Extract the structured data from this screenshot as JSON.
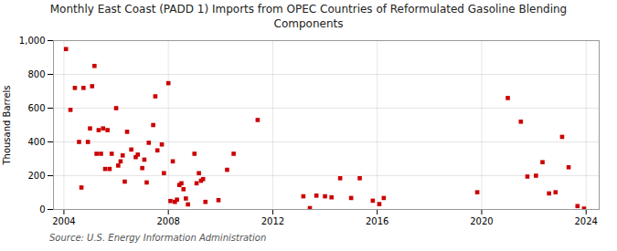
{
  "chart_data": {
    "type": "scatter",
    "title": "Monthly East Coast (PADD 1) Imports from OPEC Countries of Reformulated Gasoline Blending\nComponents",
    "ylabel": "Thousand Barrels",
    "source": "Source: U.S. Energy Information Administration",
    "x": [
      2004.08,
      2004.25,
      2004.42,
      2004.58,
      2004.67,
      2004.75,
      2004.92,
      2005.0,
      2005.08,
      2005.17,
      2005.25,
      2005.33,
      2005.42,
      2005.5,
      2005.58,
      2005.67,
      2005.75,
      2005.83,
      2006.0,
      2006.08,
      2006.17,
      2006.25,
      2006.33,
      2006.42,
      2006.58,
      2006.75,
      2006.83,
      2007.0,
      2007.08,
      2007.17,
      2007.25,
      2007.42,
      2007.5,
      2007.58,
      2007.75,
      2007.83,
      2008.0,
      2008.08,
      2008.17,
      2008.25,
      2008.33,
      2008.42,
      2008.5,
      2008.58,
      2008.67,
      2008.75,
      2009.0,
      2009.08,
      2009.17,
      2009.25,
      2009.33,
      2009.42,
      2009.92,
      2010.25,
      2010.5,
      2011.42,
      2013.17,
      2013.42,
      2013.67,
      2014.0,
      2014.25,
      2014.58,
      2015.0,
      2015.33,
      2015.83,
      2016.08,
      2016.25,
      2019.83,
      2021.0,
      2021.5,
      2021.75,
      2022.08,
      2022.33,
      2022.58,
      2022.83,
      2023.08,
      2023.33,
      2023.67,
      2023.92
    ],
    "values": [
      950,
      590,
      720,
      400,
      130,
      720,
      400,
      480,
      730,
      850,
      330,
      470,
      330,
      480,
      240,
      470,
      240,
      330,
      600,
      260,
      285,
      320,
      165,
      460,
      355,
      310,
      325,
      245,
      295,
      160,
      395,
      500,
      670,
      350,
      385,
      215,
      748,
      50,
      285,
      45,
      58,
      145,
      155,
      120,
      65,
      30,
      330,
      155,
      215,
      170,
      180,
      45,
      55,
      235,
      330,
      530,
      78,
      8,
      82,
      78,
      72,
      185,
      68,
      185,
      52,
      32,
      68,
      102,
      660,
      520,
      195,
      200,
      280,
      95,
      102,
      430,
      250,
      20,
      5
    ],
    "color": "#cc0000",
    "marker": "square",
    "xlim": [
      2003.6,
      2024.5
    ],
    "ylim": [
      0,
      1000
    ],
    "xticks": [
      2004,
      2008,
      2012,
      2016,
      2020,
      2024
    ],
    "yticks": [
      0,
      200,
      400,
      600,
      800,
      {
        "value": 1000,
        "label": "1,000"
      }
    ],
    "grid": true
  }
}
